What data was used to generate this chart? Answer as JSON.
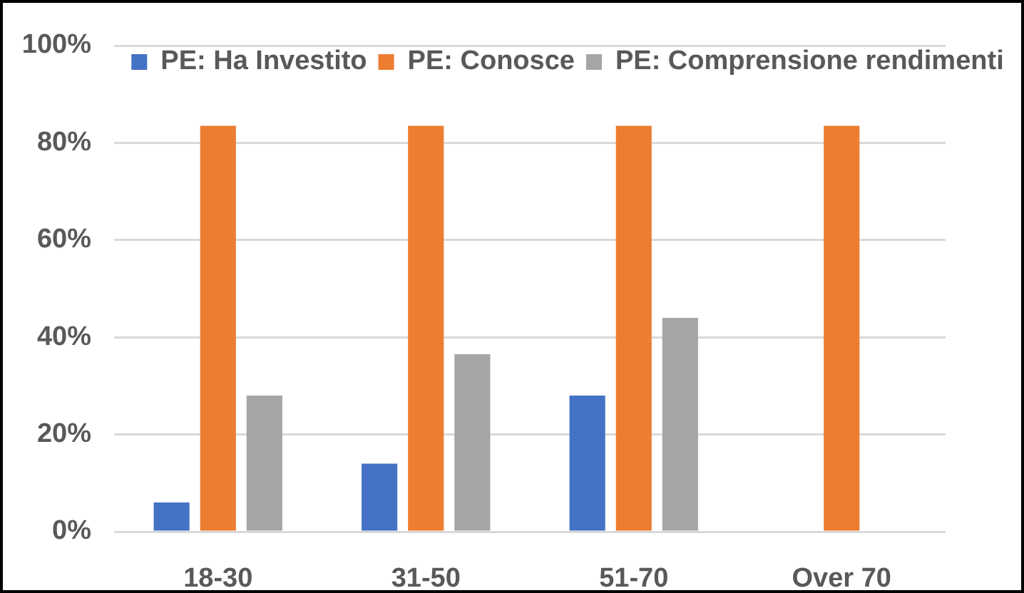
{
  "chart_data": {
    "type": "bar",
    "categories": [
      "18-30",
      "31-50",
      "51-70",
      "Over 70"
    ],
    "series": [
      {
        "name": "PE: Ha Investito",
        "color": "#4472c4",
        "values": [
          6,
          14,
          28,
          null
        ]
      },
      {
        "name": "PE: Conosce",
        "color": "#ed7d31",
        "values": [
          83.5,
          83.5,
          83.5,
          83.5
        ]
      },
      {
        "name": "PE: Comprensione rendimenti",
        "color": "#a5a5a5",
        "values": [
          28,
          36.5,
          44,
          null
        ]
      }
    ],
    "ylim": [
      0,
      100
    ],
    "yticks": [
      {
        "value": 0,
        "label": "0%"
      },
      {
        "value": 20,
        "label": "20%"
      },
      {
        "value": 40,
        "label": "40%"
      },
      {
        "value": 60,
        "label": "60%"
      },
      {
        "value": 80,
        "label": "80%"
      },
      {
        "value": 100,
        "label": "100%"
      }
    ],
    "grid": "y",
    "legend": "top"
  }
}
